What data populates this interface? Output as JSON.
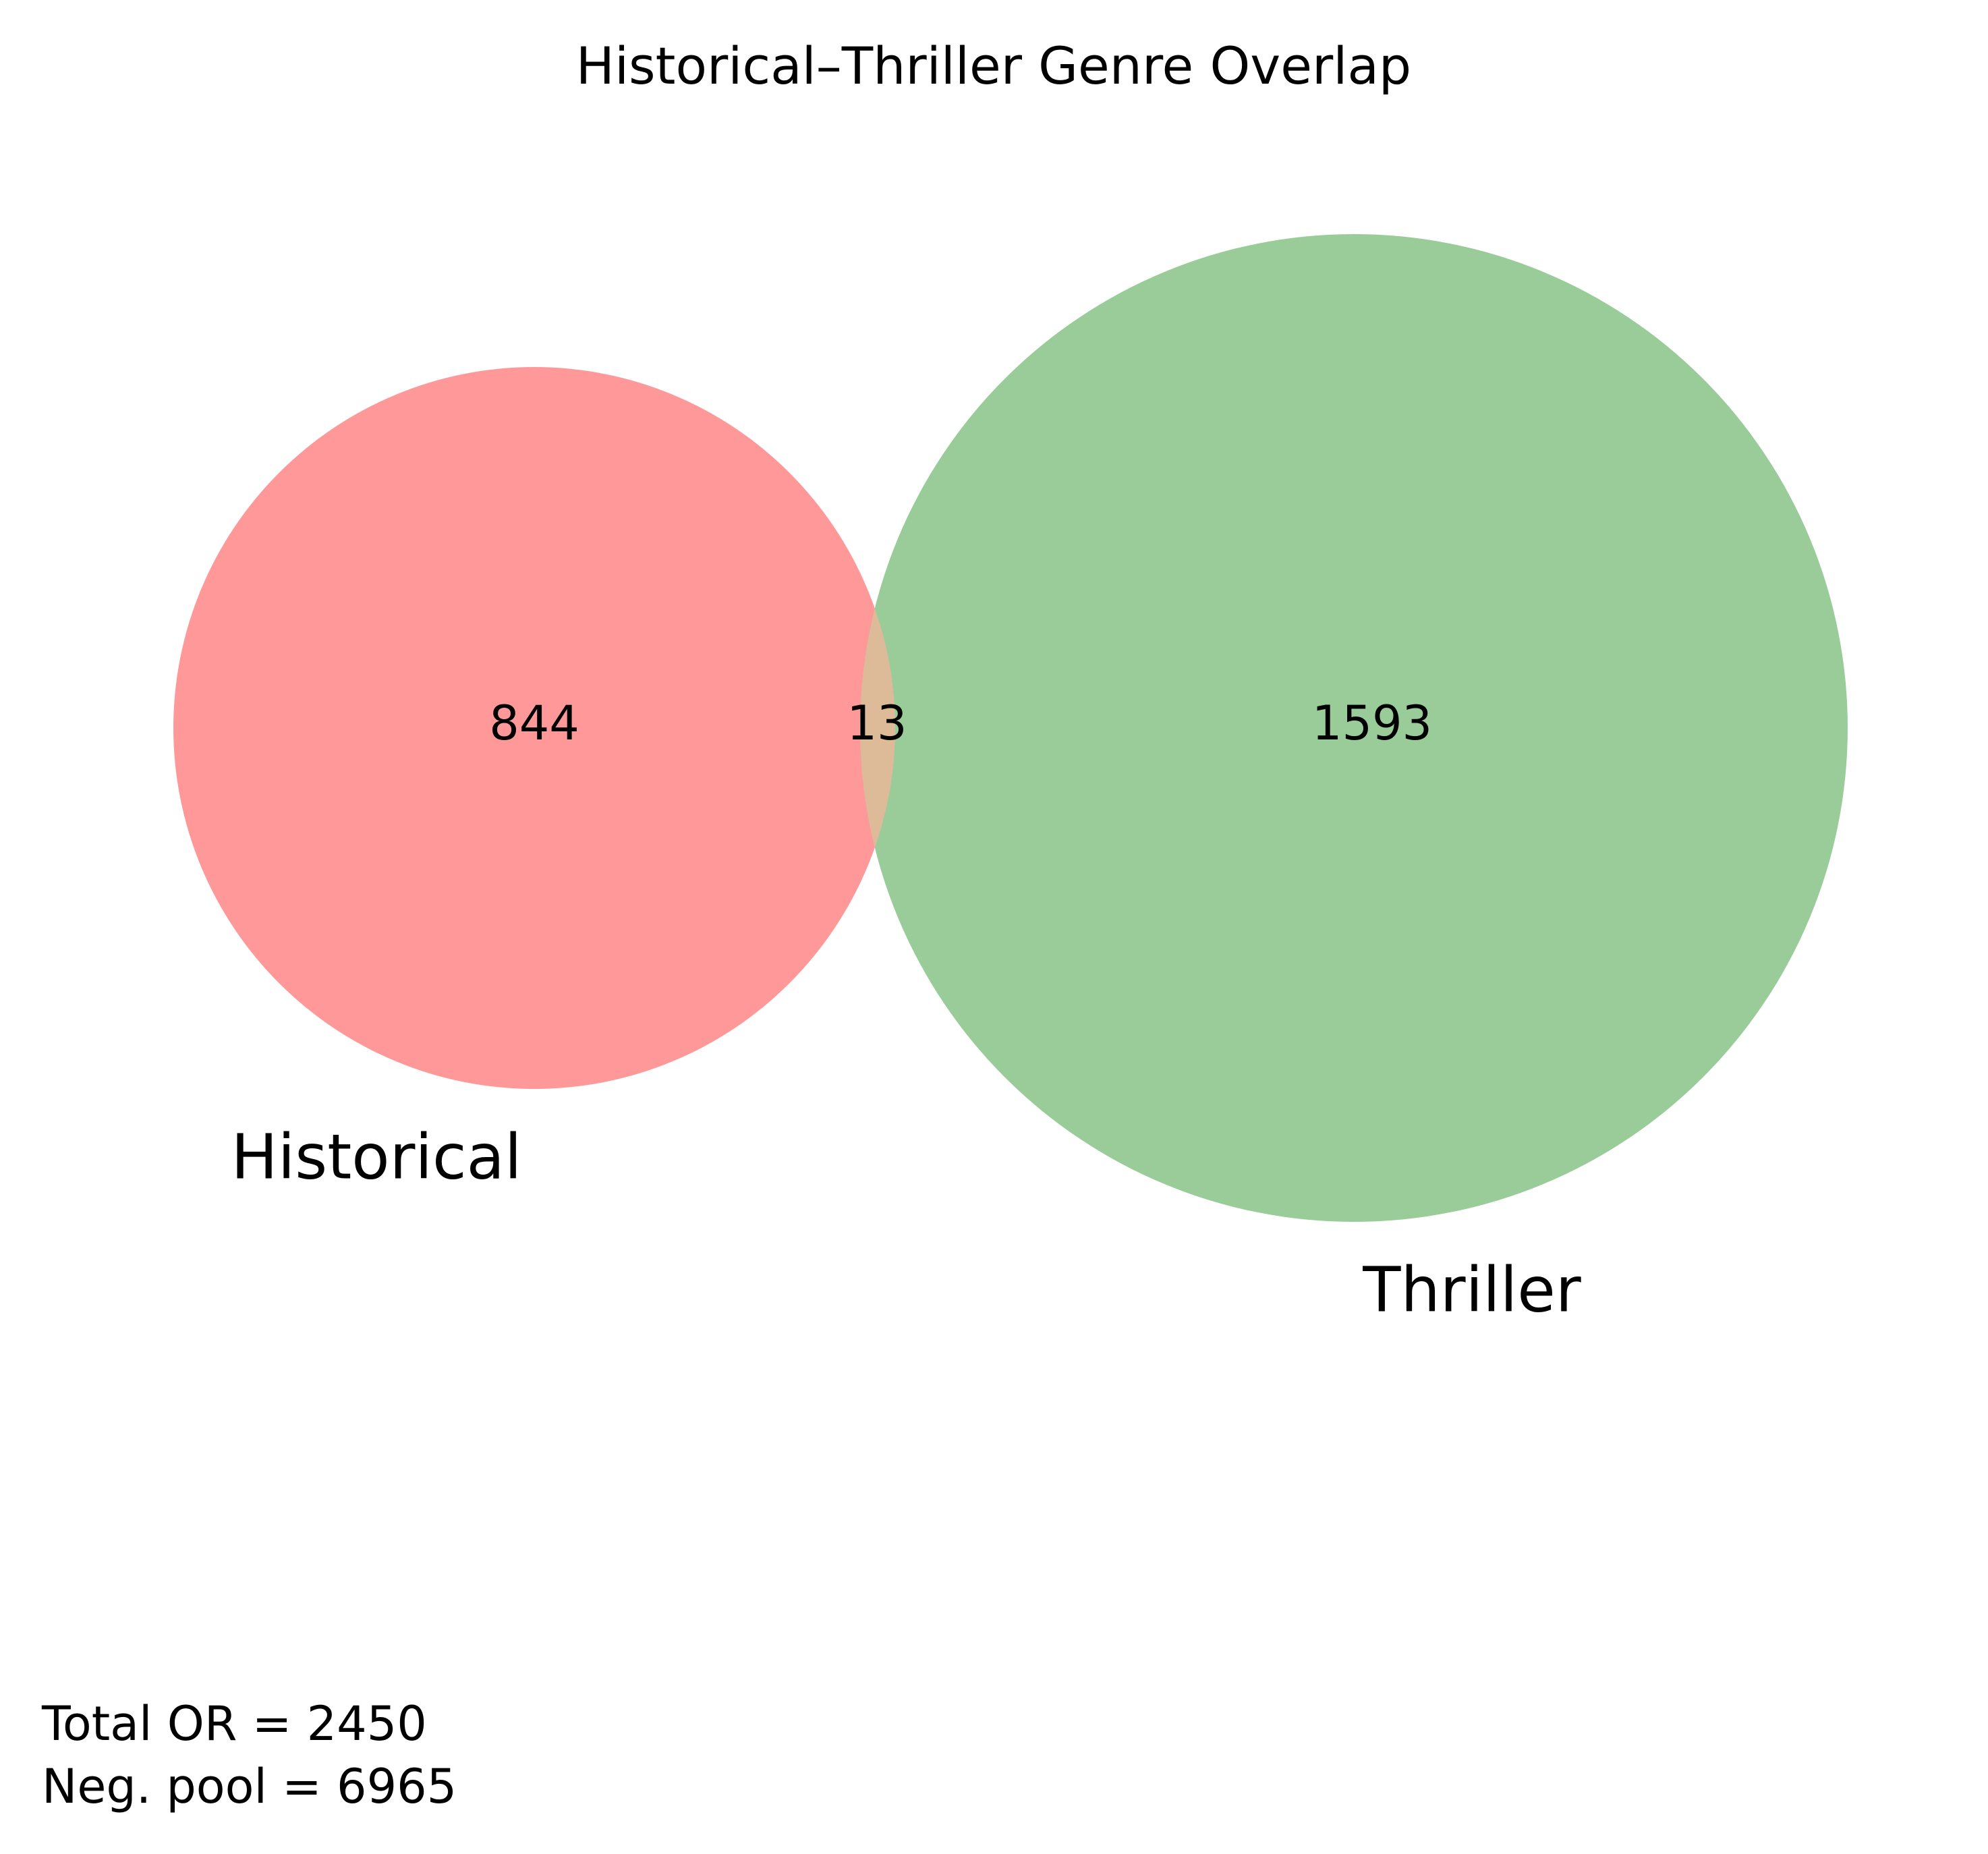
{
  "chart_data": {
    "type": "venn",
    "title": "Historical–Thriller Genre Overlap",
    "sets": [
      {
        "name": "Historical",
        "only_count": 844,
        "color": "#ff9999"
      },
      {
        "name": "Thriller",
        "only_count": 1593,
        "color": "#99cc99"
      }
    ],
    "intersection": {
      "count": 13,
      "color": "#ddbb99"
    },
    "annotations": [
      "Total OR = 2450",
      "Neg. pool = 6965"
    ]
  }
}
